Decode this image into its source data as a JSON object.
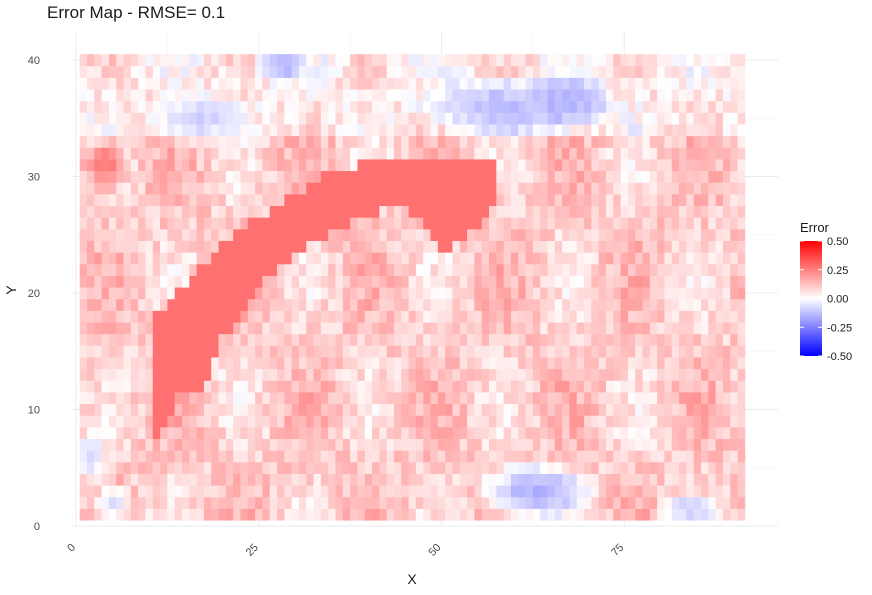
{
  "chart_data": {
    "type": "heatmap",
    "title": "Error Map - RMSE= 0.1",
    "xlabel": "X",
    "ylabel": "Y",
    "xlim": [
      0,
      91
    ],
    "ylim": [
      0,
      40.5
    ],
    "x_ticks": [
      0,
      25,
      50,
      75
    ],
    "x_tick_labels": [
      "0",
      "25",
      "50",
      "75"
    ],
    "y_ticks": [
      0,
      10,
      20,
      30,
      40
    ],
    "y_tick_labels": [
      "0",
      "10",
      "20",
      "30",
      "40"
    ],
    "grid": true,
    "grid_extent": {
      "x": [
        0.5,
        91.5
      ],
      "y": [
        0.5,
        40.5
      ]
    },
    "legend": {
      "title": "Error",
      "placement": "right",
      "range": [
        -0.5,
        0.5
      ],
      "breaks": [
        0.5,
        0.25,
        0.0,
        -0.25,
        -0.5
      ],
      "break_labels": [
        "0.50",
        "0.25",
        "0.00",
        "-0.25",
        "-0.50"
      ],
      "colors": {
        "low": "#0000ff",
        "mid": "#ffffff",
        "high": "#ff0000"
      }
    },
    "regions": [
      {
        "kind": "band",
        "value": 0.28,
        "polygon": [
          [
            11,
            7.5
          ],
          [
            11,
            18
          ],
          [
            16,
            21.5
          ],
          [
            22,
            25.5
          ],
          [
            29,
            28
          ],
          [
            35,
            30.5
          ],
          [
            46,
            32
          ],
          [
            57,
            31.5
          ],
          [
            58,
            28
          ],
          [
            54,
            25
          ],
          [
            50,
            23.5
          ],
          [
            48,
            26
          ],
          [
            44,
            27.5
          ],
          [
            38,
            26
          ],
          [
            33,
            24.5
          ],
          [
            26,
            21
          ],
          [
            20,
            16
          ],
          [
            18,
            12
          ],
          [
            14,
            11
          ]
        ]
      },
      {
        "kind": "blob",
        "value": 0.25,
        "cx": 4,
        "cy": 31,
        "rx": 3.5,
        "ry": 2.5
      },
      {
        "kind": "blob",
        "value": -0.18,
        "cx": 67,
        "cy": 36.5,
        "rx": 7,
        "ry": 2.8
      },
      {
        "kind": "blob",
        "value": -0.12,
        "cx": 59,
        "cy": 36,
        "rx": 14,
        "ry": 3
      },
      {
        "kind": "blob",
        "value": -0.14,
        "cx": 28,
        "cy": 39.5,
        "rx": 4,
        "ry": 1.8
      },
      {
        "kind": "blob",
        "value": -0.08,
        "cx": 17,
        "cy": 35,
        "rx": 8,
        "ry": 2.5
      },
      {
        "kind": "blob",
        "value": -0.15,
        "cx": 63,
        "cy": 3,
        "rx": 9,
        "ry": 2.8
      },
      {
        "kind": "blob",
        "value": -0.1,
        "cx": 84,
        "cy": 1.5,
        "rx": 5,
        "ry": 1.5
      },
      {
        "kind": "blob",
        "value": -0.08,
        "cx": 2,
        "cy": 6,
        "rx": 2.5,
        "ry": 2.5
      },
      {
        "kind": "blob",
        "value": -0.05,
        "cx": 5,
        "cy": 2,
        "rx": 3,
        "ry": 2
      }
    ]
  }
}
